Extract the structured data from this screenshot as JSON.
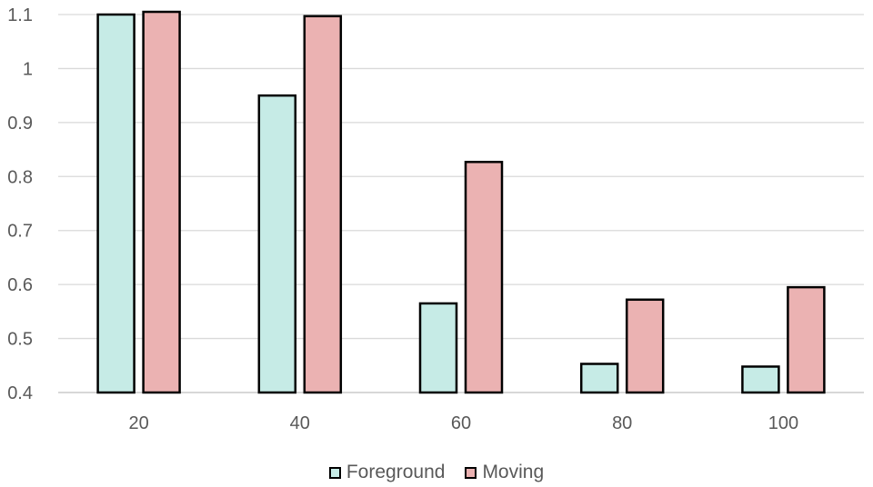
{
  "chart_data": {
    "type": "bar",
    "categories": [
      "20",
      "40",
      "60",
      "80",
      "100"
    ],
    "series": [
      {
        "name": "Foreground",
        "color": "#c6ebe6",
        "values": [
          1.1,
          0.95,
          0.565,
          0.453,
          0.448
        ]
      },
      {
        "name": "Moving",
        "color": "#ebb2b2",
        "values": [
          1.105,
          1.097,
          0.827,
          0.572,
          0.595
        ]
      }
    ],
    "ylim": [
      0.4,
      1.1
    ],
    "yticks": [
      "0.4",
      "0.5",
      "0.6",
      "0.7",
      "0.8",
      "0.9",
      "1",
      "1.1"
    ],
    "grid": true,
    "legend_position": "bottom"
  }
}
